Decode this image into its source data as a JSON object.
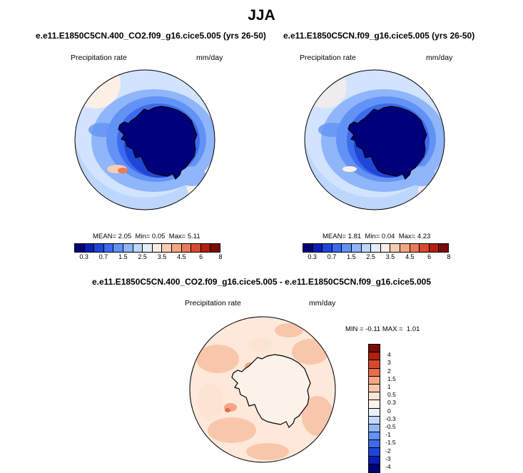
{
  "season": "JJA",
  "panels": {
    "top_left": {
      "title": "e.e11.E1850C5CN.400_CO2.f09_g16.cice5.005 (yrs 26-50)",
      "variable": "Precipitation rate",
      "units": "mm/day",
      "stats": {
        "mean_label": "MEAN=",
        "mean": "2.05",
        "min_label": "Min=",
        "min": "0.05",
        "max_label": "Max=",
        "max": "5.11"
      }
    },
    "top_right": {
      "title": "e.e11.E1850C5CN.f09_g16.cice5.005 (yrs 26-50)",
      "variable": "Precipitation rate",
      "units": "mm/day",
      "stats": {
        "mean_label": "MEAN=",
        "mean": "1.81",
        "min_label": "Min=",
        "min": "0.04",
        "max_label": "Max=",
        "max": "4.23"
      }
    },
    "difference": {
      "title": "e.e11.E1850C5CN.400_CO2.f09_g16.cice5.005 - e.e11.E1850C5CN.f09_g16.cice5.005",
      "variable": "Precipitation rate",
      "units": "mm/day",
      "stats": {
        "min_label": "MIN =",
        "min": "-0.11",
        "max_label": "MAX =",
        "max": "1.01"
      }
    }
  },
  "colorbar_top": {
    "ticks": [
      "0.3",
      "0.7",
      "1.5",
      "2.5",
      "3.5",
      "4.5",
      "6",
      "8"
    ],
    "colors": [
      "#00007a",
      "#0a1fb4",
      "#1f46d6",
      "#3d6bef",
      "#6292f5",
      "#8fb5fa",
      "#bdd6fc",
      "#e2eefd",
      "#fbefe6",
      "#f9cdb4",
      "#f4a584",
      "#ea7a5a",
      "#d84a2f",
      "#b3200f",
      "#7a0a06"
    ]
  },
  "colorbar_diff": {
    "ticks": [
      "4",
      "3",
      "2",
      "1.5",
      "1",
      "0.5",
      "0.3",
      "0",
      "-0.3",
      "-0.5",
      "-1",
      "-1.5",
      "-2",
      "-3",
      "-4"
    ],
    "colors": [
      "#7a0a06",
      "#b3200f",
      "#d84a2f",
      "#ea6d46",
      "#f4a584",
      "#f8c7ab",
      "#fbe4d4",
      "#fdf2ea",
      "#e8f0fd",
      "#c3d8fb",
      "#93b7f6",
      "#6292f5",
      "#3d6bef",
      "#1f46d6",
      "#0a1fb4",
      "#00007a"
    ]
  },
  "icons": {
    "antarctica_outline": "antarctica-coastline-icon"
  }
}
